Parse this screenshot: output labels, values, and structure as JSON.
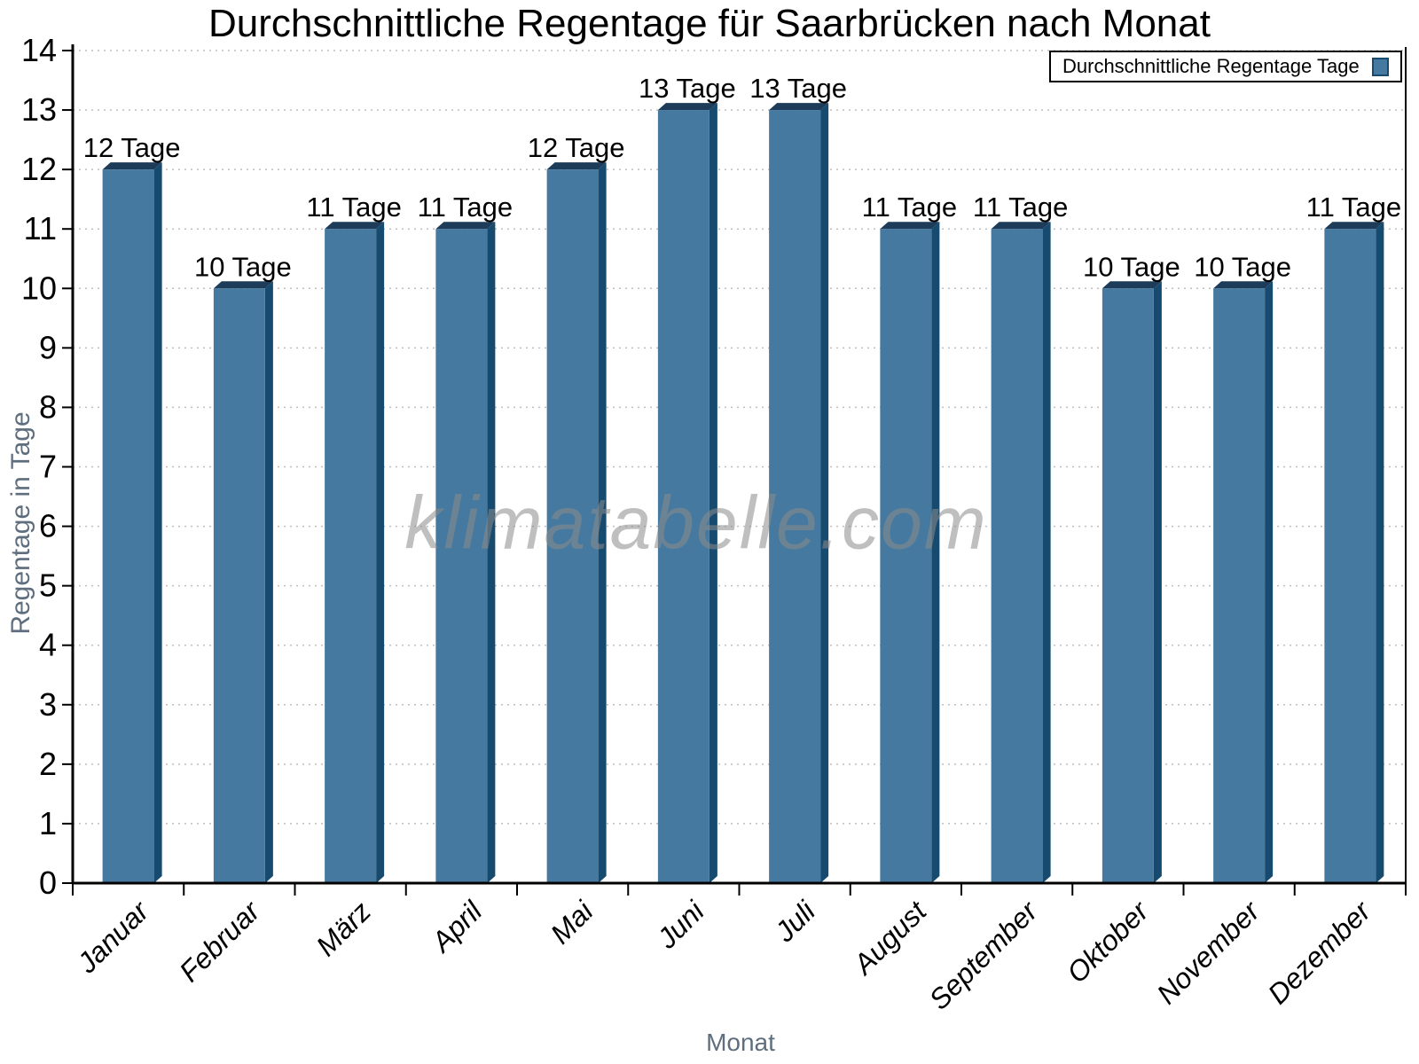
{
  "chart_data": {
    "type": "bar",
    "title": "Durchschnittliche Regentage für Saarbrücken nach Monat",
    "xlabel": "Monat",
    "ylabel": "Regentage in Tage",
    "categories": [
      "Januar",
      "Februar",
      "März",
      "April",
      "Mai",
      "Juni",
      "Juli",
      "August",
      "September",
      "Oktober",
      "November",
      "Dezember"
    ],
    "values": [
      12,
      10,
      11,
      11,
      12,
      13,
      13,
      11,
      11,
      10,
      10,
      11
    ],
    "value_labels": [
      "12 Tage",
      "10 Tage",
      "11 Tage",
      "11 Tage",
      "12 Tage",
      "13 Tage",
      "13 Tage",
      "11 Tage",
      "11 Tage",
      "10 Tage",
      "10 Tage",
      "11 Tage"
    ],
    "ylim": [
      0,
      14
    ],
    "ytick_step": 1,
    "grid": true,
    "legend": {
      "label": "Durchschnittliche Regentage Tage",
      "position": "top-right"
    },
    "watermark": "klimatabelle.com",
    "colors": {
      "bar_fill": "#46799f",
      "bar_side": "#164a6e",
      "bar_top": "#1c3c59",
      "grid": "#bfbfbf",
      "axis": "#000000",
      "axis_title": "#5f6e7e",
      "watermark": "#8c8c8c"
    }
  }
}
